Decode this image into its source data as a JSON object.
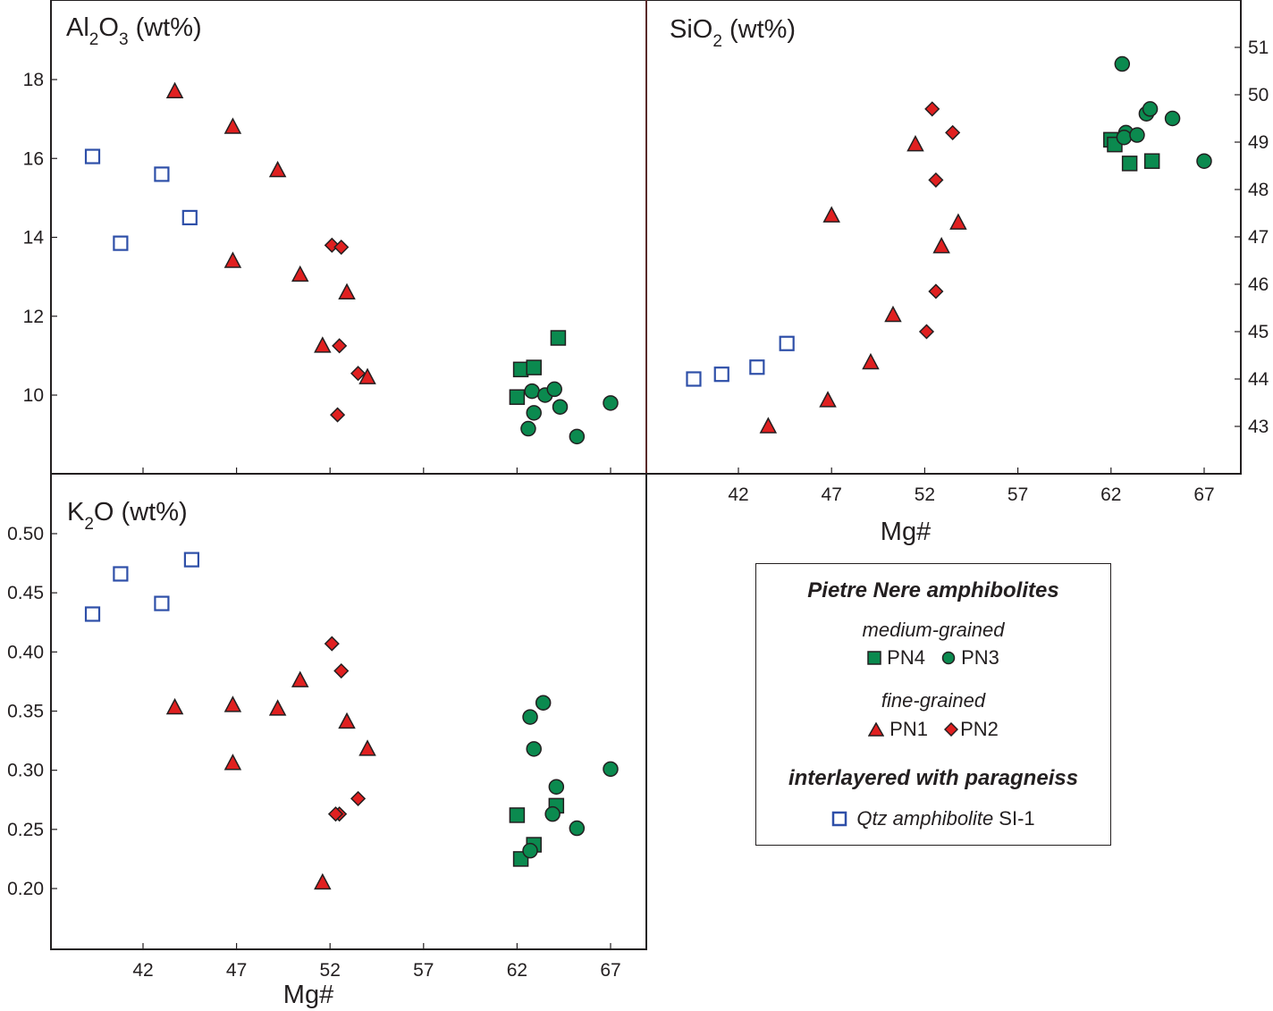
{
  "colors": {
    "PN4": "#0b8a4f",
    "PN3": "#0b8a4f",
    "PN1": "#e02020",
    "PN2": "#e02020",
    "SI1": "#2e4fa8",
    "stroke": "#231f20"
  },
  "legend": {
    "title": "Pietre Nere amphibolites",
    "medium_label": "medium-grained",
    "pn4_label": "PN4",
    "pn3_label": "PN3",
    "fine_label": "fine-grained",
    "pn1_label": "PN1",
    "pn2_label": "PN2",
    "interlayered_label": "interlayered with paragneiss",
    "si1_label_italic": "Qtz amphibolite",
    "si1_label_plain": " SI-1"
  },
  "chart_data": [
    {
      "type": "scatter",
      "id": "al2o3",
      "title": "Al2O3 (wt%)",
      "title_main": "Al",
      "title_sub1": "2",
      "title_mid": "O",
      "title_sub2": "3",
      "title_tail": " (wt%)",
      "xlabel": "",
      "ylabel": "Al2O3 (wt%)",
      "xlim": [
        37,
        69
      ],
      "ylim": [
        8.0,
        20.0
      ],
      "xticks": [
        42,
        47,
        52,
        57,
        62,
        67
      ],
      "yticks": [
        10,
        12,
        14,
        16,
        18
      ],
      "yaxis_side": "left",
      "show_xtick_labels": false,
      "series": [
        {
          "name": "PN4",
          "marker": "square-filled",
          "points": [
            [
              62.0,
              9.95
            ],
            [
              62.2,
              10.65
            ],
            [
              62.9,
              10.7
            ],
            [
              64.2,
              11.45
            ]
          ]
        },
        {
          "name": "PN3",
          "marker": "circle",
          "points": [
            [
              62.6,
              9.15
            ],
            [
              62.8,
              10.1
            ],
            [
              62.9,
              9.55
            ],
            [
              63.5,
              10.0
            ],
            [
              64.0,
              10.15
            ],
            [
              64.3,
              9.7
            ],
            [
              65.2,
              8.95
            ],
            [
              67.0,
              9.8
            ]
          ]
        },
        {
          "name": "PN1",
          "marker": "triangle",
          "points": [
            [
              43.7,
              17.7
            ],
            [
              46.8,
              16.8
            ],
            [
              49.2,
              15.7
            ],
            [
              46.8,
              13.4
            ],
            [
              50.4,
              13.05
            ],
            [
              52.9,
              12.6
            ],
            [
              51.6,
              11.25
            ],
            [
              54.0,
              10.45
            ]
          ]
        },
        {
          "name": "PN2",
          "marker": "diamond",
          "points": [
            [
              52.1,
              13.8
            ],
            [
              52.6,
              13.75
            ],
            [
              52.5,
              11.25
            ],
            [
              53.5,
              10.55
            ],
            [
              52.4,
              9.5
            ]
          ]
        },
        {
          "name": "Qtz amphibolite SI-1",
          "marker": "square-open",
          "points": [
            [
              39.3,
              16.05
            ],
            [
              40.8,
              13.85
            ],
            [
              43.0,
              15.6
            ],
            [
              44.5,
              14.5
            ]
          ]
        }
      ]
    },
    {
      "type": "scatter",
      "id": "sio2",
      "title": "SiO2 (wt%)",
      "title_main": "SiO",
      "title_sub1": "2",
      "title_tail": " (wt%)",
      "xlabel": "Mg#",
      "ylabel": "SiO2 (wt%)",
      "xlim": [
        37,
        69
      ],
      "ylim": [
        42.0,
        52.0
      ],
      "xticks": [
        42,
        47,
        52,
        57,
        62,
        67
      ],
      "yticks": [
        43,
        44,
        45,
        46,
        47,
        48,
        49,
        50,
        51
      ],
      "yaxis_side": "right",
      "show_xtick_labels": true,
      "series": [
        {
          "name": "PN4",
          "marker": "square-filled",
          "points": [
            [
              62.0,
              49.05
            ],
            [
              62.2,
              48.95
            ],
            [
              63.0,
              48.55
            ],
            [
              64.2,
              48.6
            ]
          ]
        },
        {
          "name": "PN3",
          "marker": "circle",
          "points": [
            [
              62.6,
              50.65
            ],
            [
              62.8,
              49.2
            ],
            [
              62.7,
              49.1
            ],
            [
              63.4,
              49.15
            ],
            [
              63.9,
              49.6
            ],
            [
              64.1,
              49.7
            ],
            [
              65.3,
              49.5
            ],
            [
              67.0,
              48.6
            ]
          ]
        },
        {
          "name": "PN1",
          "marker": "triangle",
          "points": [
            [
              43.6,
              43.0
            ],
            [
              46.8,
              43.55
            ],
            [
              49.1,
              44.35
            ],
            [
              50.3,
              45.35
            ],
            [
              47.0,
              47.45
            ],
            [
              51.5,
              48.95
            ],
            [
              52.9,
              46.8
            ],
            [
              53.8,
              47.3
            ]
          ]
        },
        {
          "name": "PN2",
          "marker": "diamond",
          "points": [
            [
              52.4,
              49.7
            ],
            [
              53.5,
              49.2
            ],
            [
              52.6,
              48.2
            ],
            [
              52.6,
              45.85
            ],
            [
              52.1,
              45.0
            ]
          ]
        },
        {
          "name": "Qtz amphibolite SI-1",
          "marker": "square-open",
          "points": [
            [
              39.6,
              44.0
            ],
            [
              41.1,
              44.1
            ],
            [
              43.0,
              44.25
            ],
            [
              44.6,
              44.75
            ]
          ]
        }
      ]
    },
    {
      "type": "scatter",
      "id": "k2o",
      "title": "K2O (wt%)",
      "title_main": "K",
      "title_sub1": "2",
      "title_tail": "O (wt%)",
      "xlabel": "Mg#",
      "ylabel": "K2O (wt%)",
      "xlim": [
        37,
        69
      ],
      "ylim": [
        0.15,
        0.55
      ],
      "xticks": [
        42,
        47,
        52,
        57,
        62,
        67
      ],
      "yticks": [
        0.2,
        0.25,
        0.3,
        0.35,
        0.4,
        0.45,
        0.5
      ],
      "ytick_labels": [
        "0.20",
        "0.25",
        "0.30",
        "0.35",
        "0.40",
        "0.45",
        "0.50"
      ],
      "yaxis_side": "left",
      "show_xtick_labels": true,
      "series": [
        {
          "name": "PN4",
          "marker": "square-filled",
          "points": [
            [
              62.0,
              0.262
            ],
            [
              62.2,
              0.225
            ],
            [
              62.9,
              0.237
            ],
            [
              64.1,
              0.27
            ]
          ]
        },
        {
          "name": "PN3",
          "marker": "circle",
          "points": [
            [
              62.7,
              0.345
            ],
            [
              63.4,
              0.357
            ],
            [
              62.9,
              0.318
            ],
            [
              64.1,
              0.286
            ],
            [
              63.9,
              0.263
            ],
            [
              62.7,
              0.232
            ],
            [
              65.2,
              0.251
            ],
            [
              67.0,
              0.301
            ]
          ]
        },
        {
          "name": "PN1",
          "marker": "triangle",
          "points": [
            [
              43.7,
              0.353
            ],
            [
              46.8,
              0.355
            ],
            [
              49.2,
              0.352
            ],
            [
              50.4,
              0.376
            ],
            [
              52.9,
              0.341
            ],
            [
              54.0,
              0.318
            ],
            [
              46.8,
              0.306
            ],
            [
              51.6,
              0.205
            ]
          ]
        },
        {
          "name": "PN2",
          "marker": "diamond",
          "points": [
            [
              52.1,
              0.407
            ],
            [
              52.6,
              0.384
            ],
            [
              53.5,
              0.276
            ],
            [
              52.5,
              0.263
            ],
            [
              52.3,
              0.263
            ]
          ]
        },
        {
          "name": "Qtz amphibolite SI-1",
          "marker": "square-open",
          "points": [
            [
              39.3,
              0.432
            ],
            [
              40.8,
              0.466
            ],
            [
              43.0,
              0.441
            ],
            [
              44.6,
              0.478
            ]
          ]
        }
      ]
    }
  ]
}
